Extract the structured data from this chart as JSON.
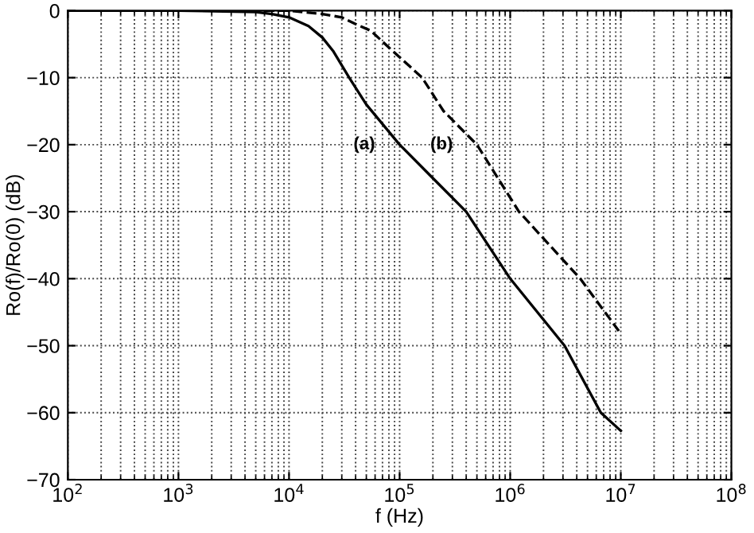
{
  "chart_data": {
    "type": "line",
    "xlabel": "f (Hz)",
    "ylabel": "Ro(f)/Ro(0) (dB)",
    "log": "x",
    "grid": true,
    "legend": false,
    "xlim": [
      100,
      100000000
    ],
    "ylim": [
      -70,
      0
    ],
    "xticks": [
      {
        "value": 100,
        "label": "10$^{2}$"
      },
      {
        "value": 1000,
        "label": "10$^{3}$"
      },
      {
        "value": 10000,
        "label": "10$^{4}$"
      },
      {
        "value": 100000,
        "label": "10$^{5}$"
      },
      {
        "value": 1000000,
        "label": "10$^{6}$"
      },
      {
        "value": 10000000,
        "label": "10$^{7}$"
      },
      {
        "value": 100000000,
        "label": "10$^{8}$"
      }
    ],
    "yticks": [
      -70,
      -60,
      -50,
      -40,
      -30,
      -20,
      -10,
      0
    ],
    "series": [
      {
        "name": "(a)",
        "color": "#000000",
        "line_style": "solid",
        "x": [
          100,
          1000,
          5000,
          7000,
          10000,
          15000,
          20000,
          25000,
          35000,
          50000,
          100000,
          200000,
          400000,
          1000000,
          3100000,
          6600000,
          10000000
        ],
        "values": [
          0,
          0,
          -0.2,
          -0.5,
          -1,
          -2.3,
          -4,
          -6,
          -10,
          -14,
          -20,
          -25,
          -30,
          -40,
          -50,
          -60,
          -62.7
        ]
      },
      {
        "name": "(b)",
        "color": "#000000",
        "line_style": "dashed",
        "x": [
          100,
          1000,
          10000,
          20000,
          30000,
          40000,
          55000,
          80000,
          160000,
          250000,
          500000,
          1200000,
          4300000,
          9600000
        ],
        "values": [
          0,
          0,
          0,
          -0.5,
          -1,
          -2,
          -3,
          -5.5,
          -10,
          -15,
          -20,
          -30,
          -40,
          -47.8
        ]
      }
    ]
  }
}
